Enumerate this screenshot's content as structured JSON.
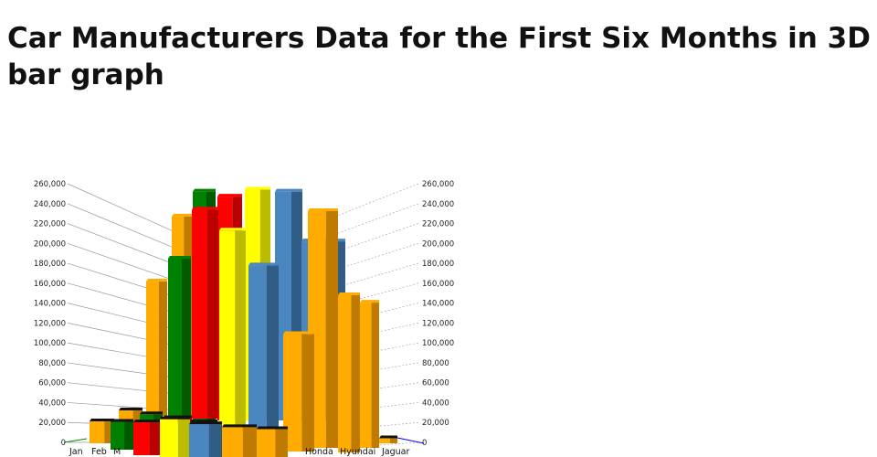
{
  "title": "Car Manufacturers Data for the First Six Months in 3D bar graph",
  "chart_data": {
    "type": "bar",
    "title": "Car Manufacturers Data for the First Six Months in 3D bar graph",
    "three_d": true,
    "ylim": [
      0,
      260000
    ],
    "y_ticks": [
      "0",
      "20,000",
      "40,000",
      "60,000",
      "80,000",
      "100,000",
      "120,000",
      "140,000",
      "160,000",
      "180,000",
      "200,000",
      "220,000",
      "240,000",
      "260,000"
    ],
    "month_labels": [
      "Jan",
      "Feb",
      "M"
    ],
    "manufacturer_labels": [
      "Jaguar",
      "Hyundai",
      "Honda"
    ],
    "grid": true,
    "colors": {
      "orange": "#ffab00",
      "green": "#008000",
      "red": "#ff0000",
      "yellow": "#ffff00",
      "blue": "#4a86c0"
    },
    "bars": [
      {
        "color": "orange",
        "value": 205000
      },
      {
        "color": "green",
        "value": 230000
      },
      {
        "color": "red",
        "value": 225000
      },
      {
        "color": "yellow",
        "value": 232000
      },
      {
        "color": "blue",
        "value": 230000
      },
      {
        "color": "blue",
        "value": 180000
      },
      {
        "color": "orange",
        "value": 135000
      },
      {
        "color": "green",
        "value": 158000
      },
      {
        "color": "red",
        "value": 210000
      },
      {
        "color": "yellow",
        "value": 200000
      },
      {
        "color": "blue",
        "value": 165000
      },
      {
        "color": "orange",
        "value": 238000
      },
      {
        "color": "orange",
        "value": 118000
      },
      {
        "color": "orange",
        "value": 158000
      },
      {
        "color": "orange",
        "value": 146000
      },
      {
        "color": "orange",
        "value": 5000
      },
      {
        "color": "orange",
        "value": 22000
      },
      {
        "color": "orange",
        "value": 12000
      },
      {
        "color": "green",
        "value": 8000
      },
      {
        "color": "red",
        "value": 4000
      },
      {
        "color": "green",
        "value": 28000
      },
      {
        "color": "red",
        "value": 33000
      },
      {
        "color": "yellow",
        "value": 2000
      },
      {
        "color": "yellow",
        "value": 38000
      },
      {
        "color": "blue",
        "value": 33000
      },
      {
        "color": "orange",
        "value": 30000
      },
      {
        "color": "orange",
        "value": 28000
      }
    ]
  }
}
